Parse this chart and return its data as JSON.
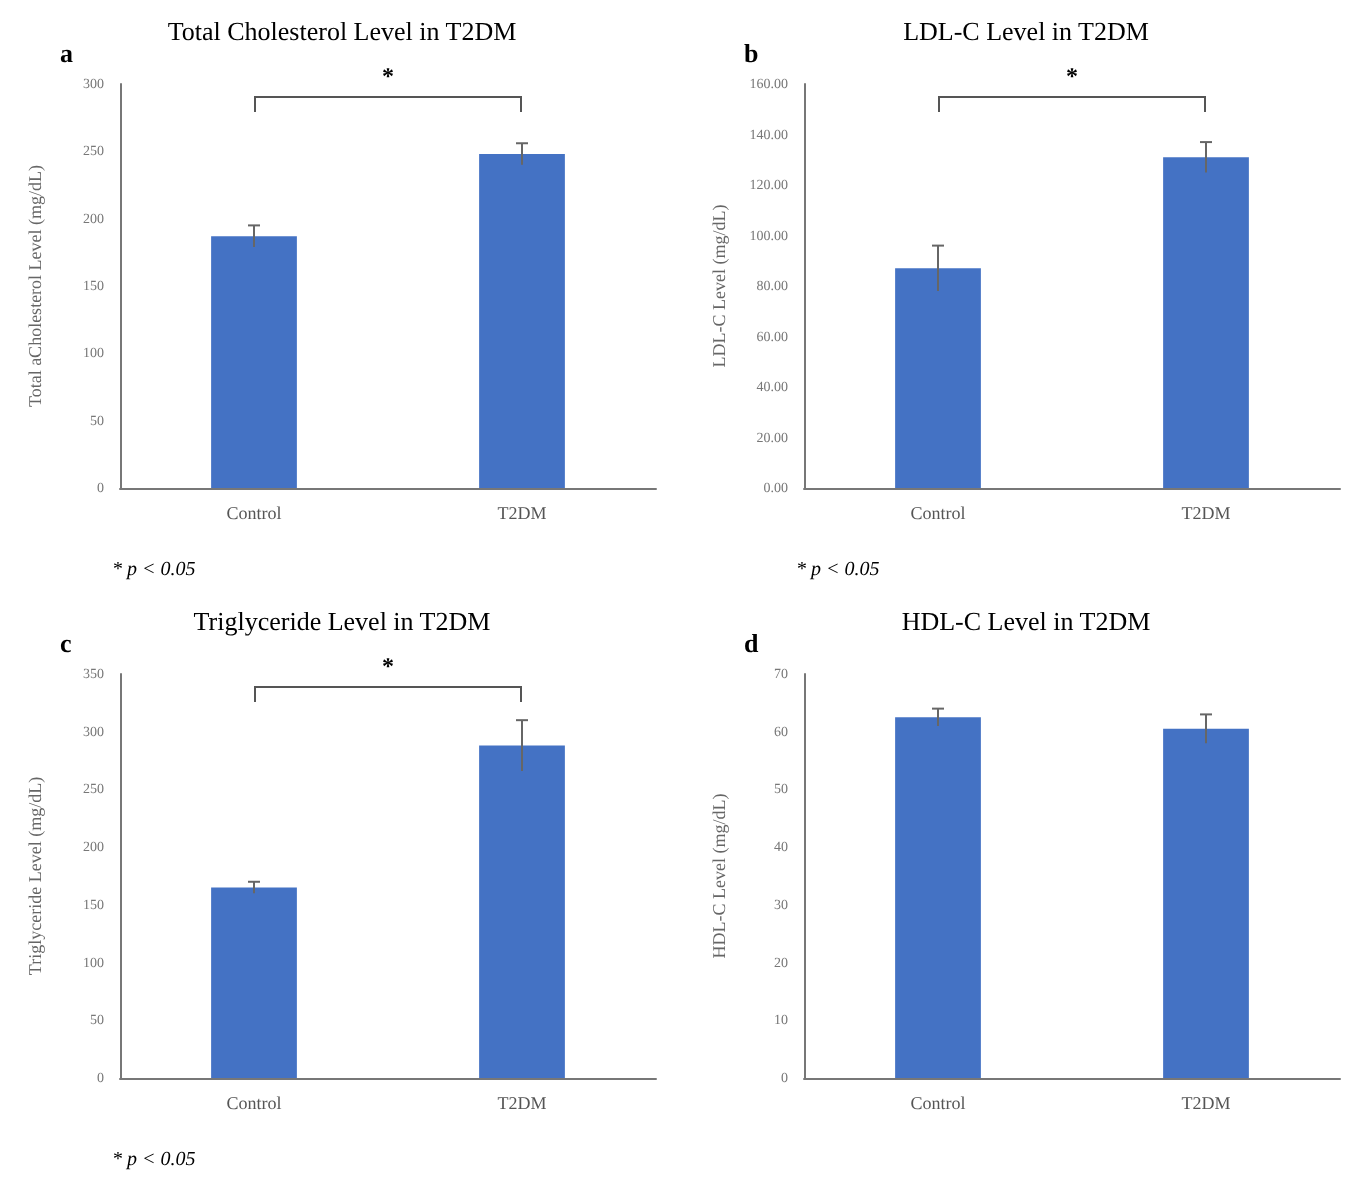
{
  "chart_data": [
    {
      "type": "bar",
      "title": "Total Cholesterol Level in T2DM",
      "ylabel": "Total aCholesterol Level (mg/dL)",
      "annotations": [
        "a",
        "*",
        "* p < 0.05"
      ],
      "categories": [
        "Control",
        "T2DM"
      ],
      "values": [
        187,
        248
      ],
      "errors": [
        8,
        8
      ],
      "color": "#4472c4",
      "ylim": [
        0,
        300
      ],
      "yticks": [
        0,
        50,
        100,
        150,
        200,
        250,
        300
      ],
      "grid": false
    },
    {
      "type": "bar",
      "title": "LDL-C Level in T2DM",
      "ylabel": "LDL-C Level (mg/dL)",
      "annotations": [
        "b",
        "*",
        "* p < 0.05"
      ],
      "categories": [
        "Control",
        "T2DM"
      ],
      "values": [
        87,
        131
      ],
      "errors": [
        9,
        6
      ],
      "color": "#4472c4",
      "ylim": [
        0,
        160
      ],
      "yticks": [
        {
          "value": 0,
          "label": "0.00"
        },
        {
          "value": 20,
          "label": "20.00"
        },
        {
          "value": 40,
          "label": "40.00"
        },
        {
          "value": 60,
          "label": "60.00"
        },
        {
          "value": 80,
          "label": "80.00"
        },
        {
          "value": 100,
          "label": "100.00"
        },
        {
          "value": 120,
          "label": "120.00"
        },
        {
          "value": 140,
          "label": "140.00"
        },
        {
          "value": 160,
          "label": "160.00"
        }
      ],
      "grid": false
    },
    {
      "type": "bar",
      "title": "Triglyceride Level in T2DM",
      "ylabel": "Triglyceride Level (mg/dL)",
      "annotations": [
        "c",
        "*",
        "* p < 0.05"
      ],
      "categories": [
        "Control",
        "T2DM"
      ],
      "values": [
        165,
        288
      ],
      "errors": [
        5,
        22
      ],
      "color": "#4472c4",
      "ylim": [
        0,
        350
      ],
      "yticks": [
        0,
        50,
        100,
        150,
        200,
        250,
        300,
        350
      ],
      "grid": false
    },
    {
      "type": "bar",
      "title": "HDL-C Level in T2DM",
      "ylabel": "HDL-C Level (mg/dL)",
      "annotations": [
        "d"
      ],
      "categories": [
        "Control",
        "T2DM"
      ],
      "values": [
        62.5,
        60.5
      ],
      "errors": [
        1.5,
        2.5
      ],
      "color": "#4472c4",
      "ylim": [
        0,
        70
      ],
      "yticks": [
        0,
        10,
        20,
        30,
        40,
        50,
        60,
        70
      ],
      "grid": false
    }
  ]
}
